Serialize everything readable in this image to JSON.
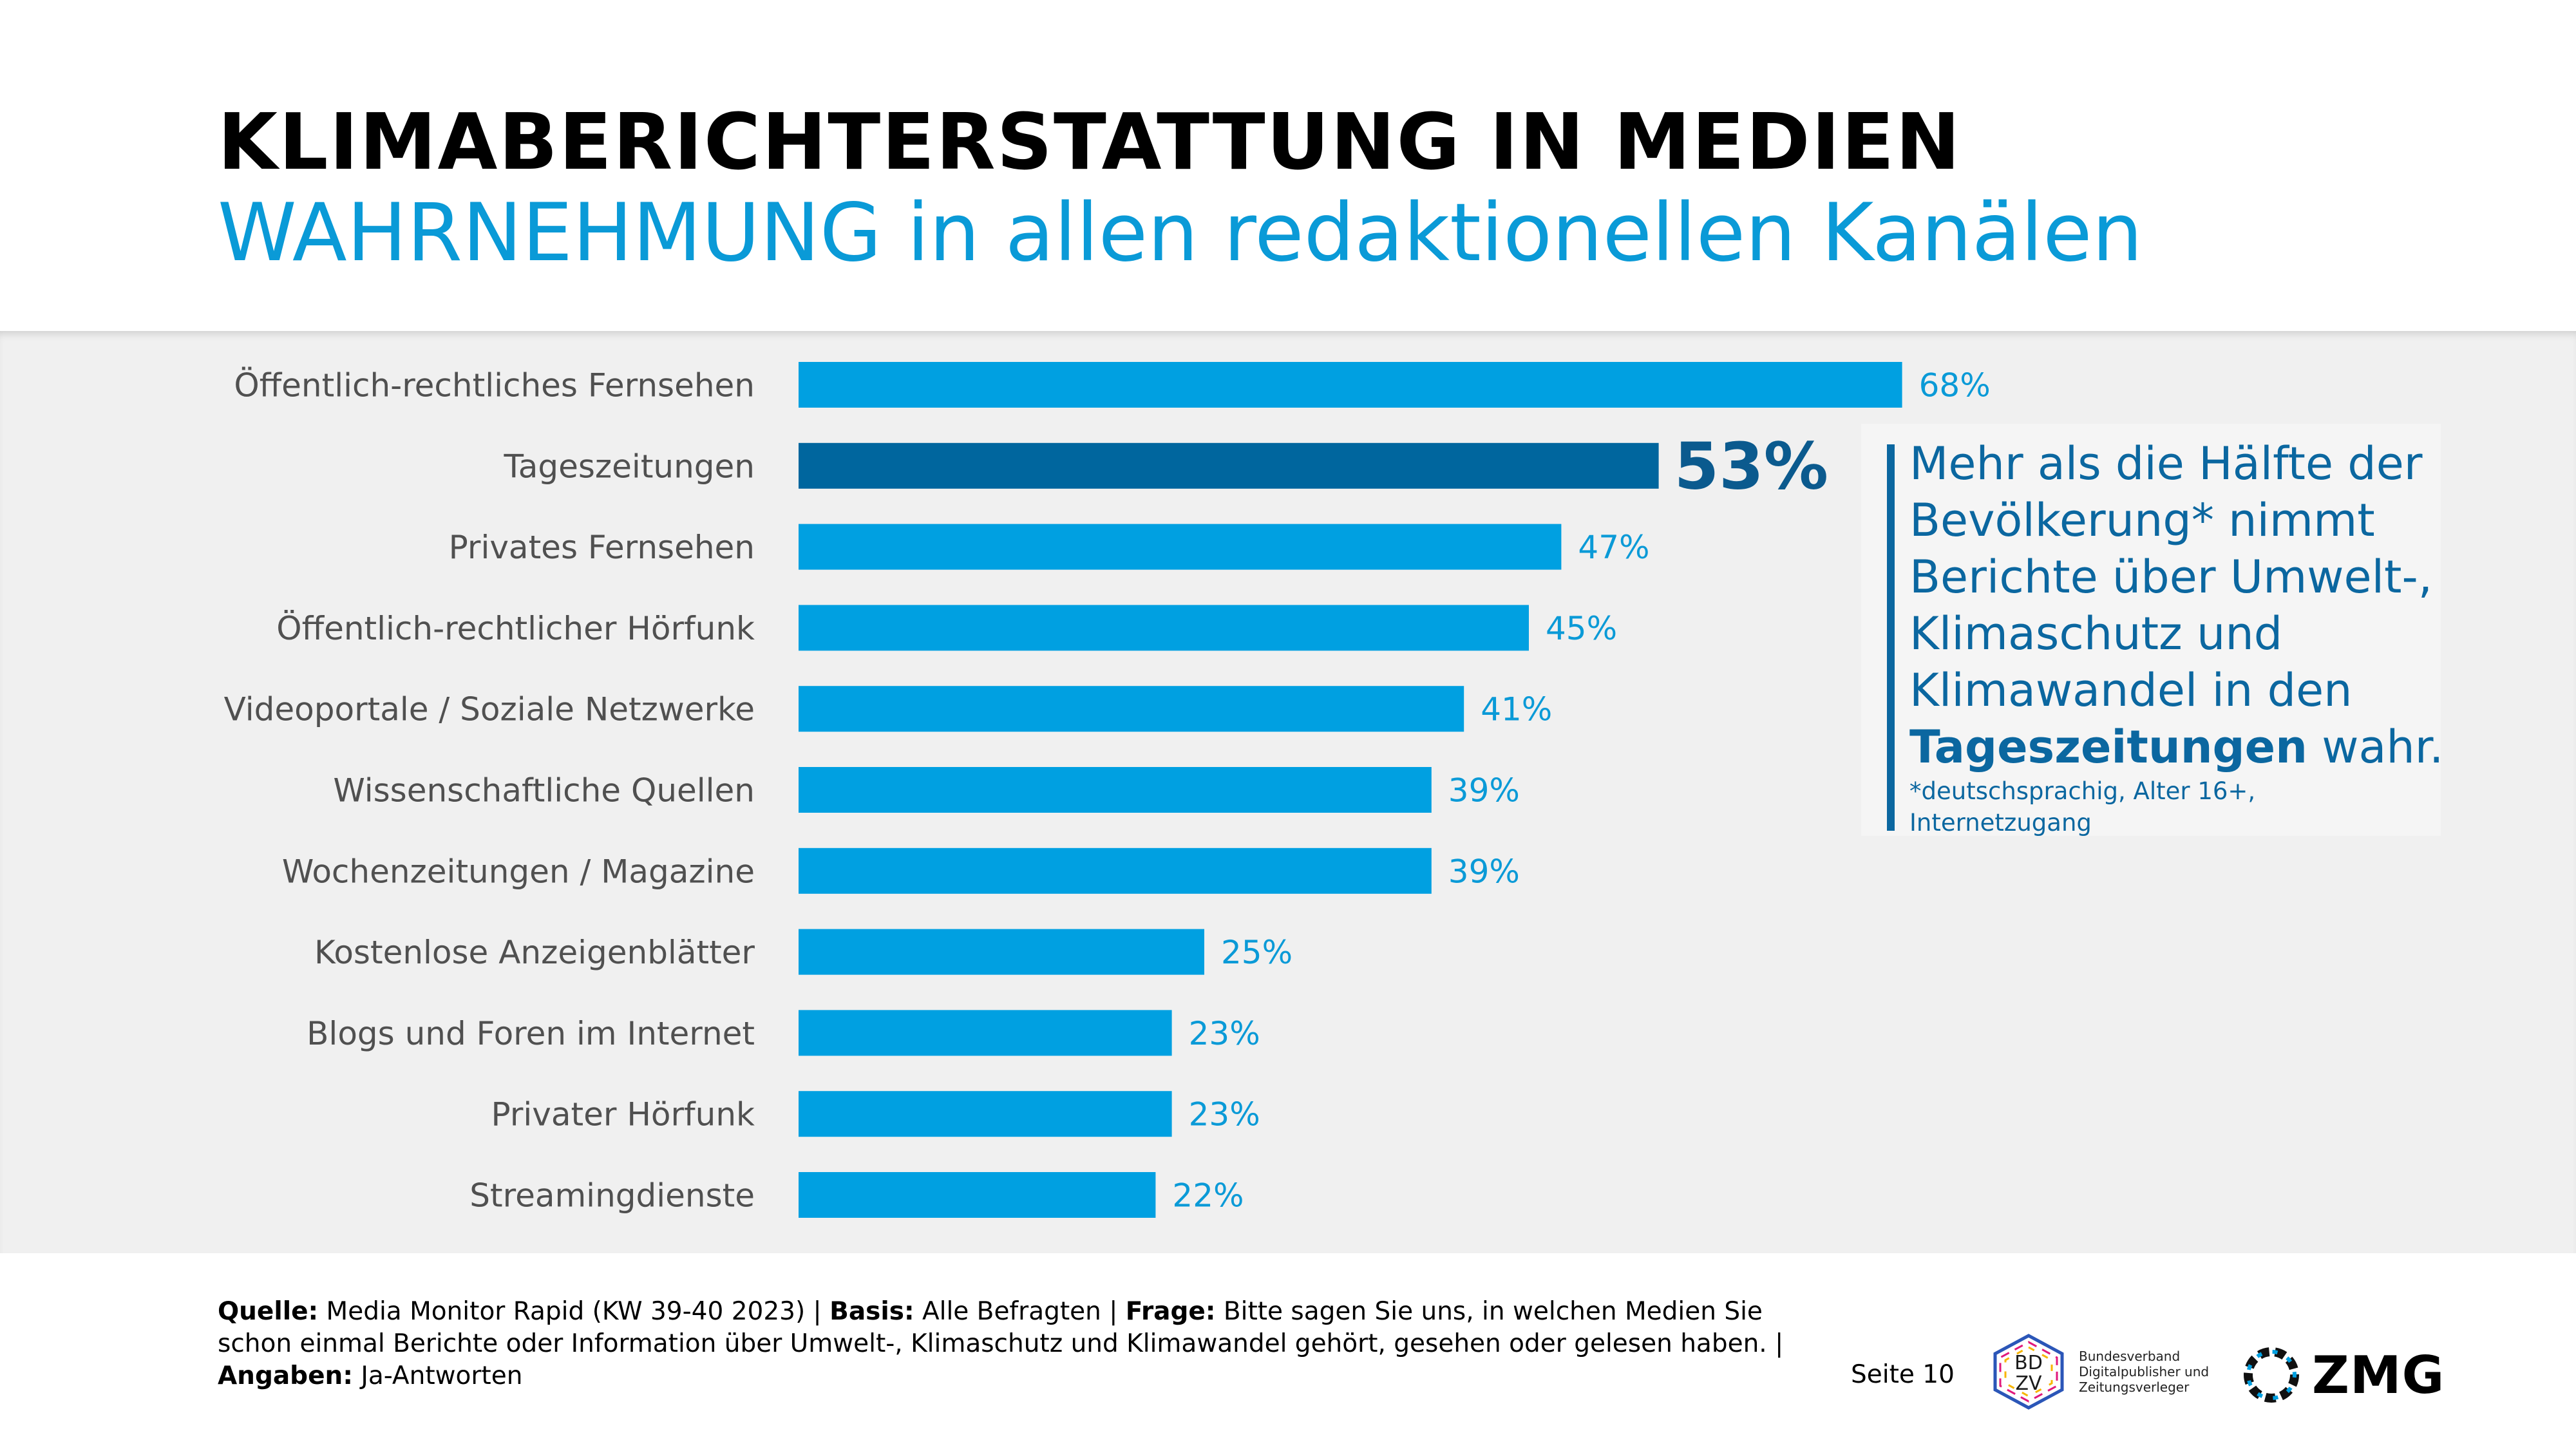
{
  "header": {
    "title": "KLIMABERICHTERSTATTUNG IN MEDIEN",
    "subtitle": "WAHRNEHMUNG in allen redaktionellen Kanälen"
  },
  "chart_data": {
    "type": "bar",
    "orientation": "horizontal",
    "categories": [
      "Öffentlich-rechtliches Fernsehen",
      "Tageszeitungen",
      "Privates Fernsehen",
      "Öffentlich-rechtlicher Hörfunk",
      "Videoportale / Soziale Netzwerke",
      "Wissenschaftliche Quellen",
      "Wochenzeitungen / Magazine",
      "Kostenlose Anzeigenblätter",
      "Blogs und Foren im Internet",
      "Privater Hörfunk",
      "Streamingdienste"
    ],
    "values": [
      68,
      53,
      47,
      45,
      41,
      39,
      39,
      25,
      23,
      23,
      22
    ],
    "value_labels": [
      "68%",
      "53%",
      "47%",
      "45%",
      "41%",
      "39%",
      "39%",
      "25%",
      "23%",
      "23%",
      "22%"
    ],
    "highlight_index": 1,
    "unit": "%",
    "colors": {
      "bar": "#00a0e1",
      "highlight": "#00669e",
      "label": "#0a9ad7",
      "highlight_label": "#0b5a8e",
      "category": "#505050"
    }
  },
  "callout": {
    "line1": "Mehr als die Hälfte der",
    "line2": "Bevölkerung* nimmt",
    "line3": "Berichte über Umwelt-,",
    "line4": "Klimaschutz und",
    "line5": "Klimawandel in den",
    "emphasis": "Tageszeitungen",
    "line6_tail": " wahr.",
    "note": "*deutschsprachig, Alter 16+, Internetzugang"
  },
  "footer": {
    "source_label": "Quelle:",
    "source": " Media Monitor Rapid (KW 39-40 2023) | ",
    "basis_label": "Basis:",
    "basis": " Alle Befragten | ",
    "question_label": "Frage:",
    "question": " Bitte sagen Sie uns, in welchen Medien Sie schon einmal Berichte oder Information über Umwelt-, Klimaschutz und Klimawandel gehört, gesehen oder gelesen haben. | ",
    "answers_label": "Angaben:",
    "answers": " Ja-Antworten",
    "page": "Seite 10"
  },
  "logos": {
    "bdzv_mark": "BDZV",
    "bdzv_name": [
      "Bundesverband",
      "Digitalpublisher und",
      "Zeitungsverleger"
    ],
    "zmg": "ZMG"
  }
}
